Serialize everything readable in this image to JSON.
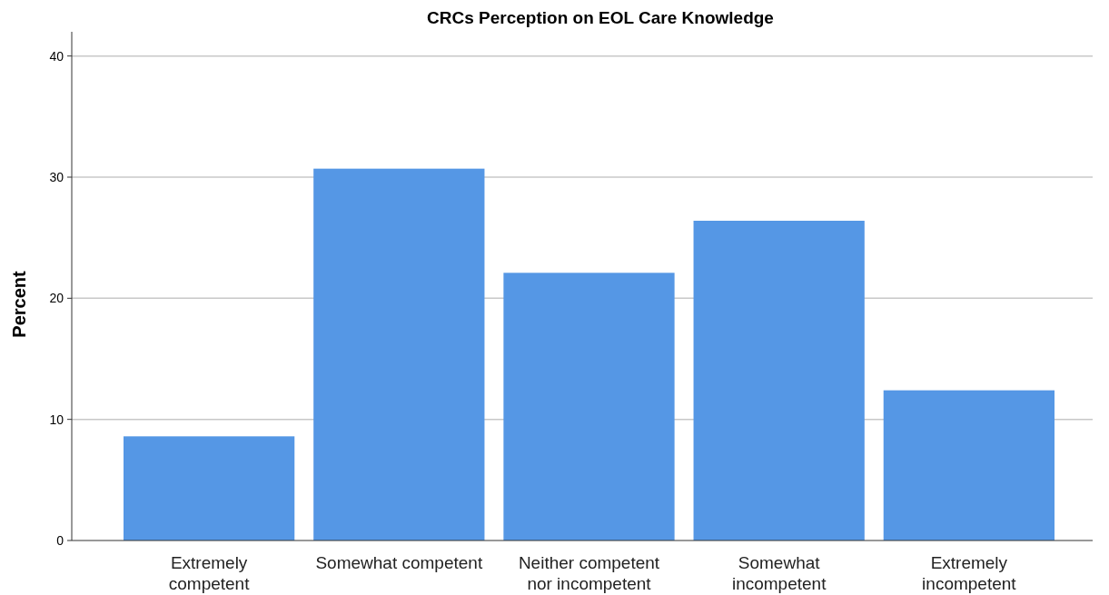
{
  "chart_data": {
    "type": "bar",
    "title": "CRCs Perception on EOL Care Knowledge",
    "ylabel": "Percent",
    "categories": [
      "Extremely competent",
      "Somewhat competent",
      "Neither competent nor incompetent",
      "Somewhat incompetent",
      "Extremely incompetent"
    ],
    "values": [
      8.6,
      30.7,
      22.1,
      26.4,
      12.4
    ],
    "color": "#5597e5",
    "ylim": [
      0,
      42
    ],
    "yticks": [
      0,
      10,
      20,
      30,
      40
    ],
    "grid": "y"
  }
}
